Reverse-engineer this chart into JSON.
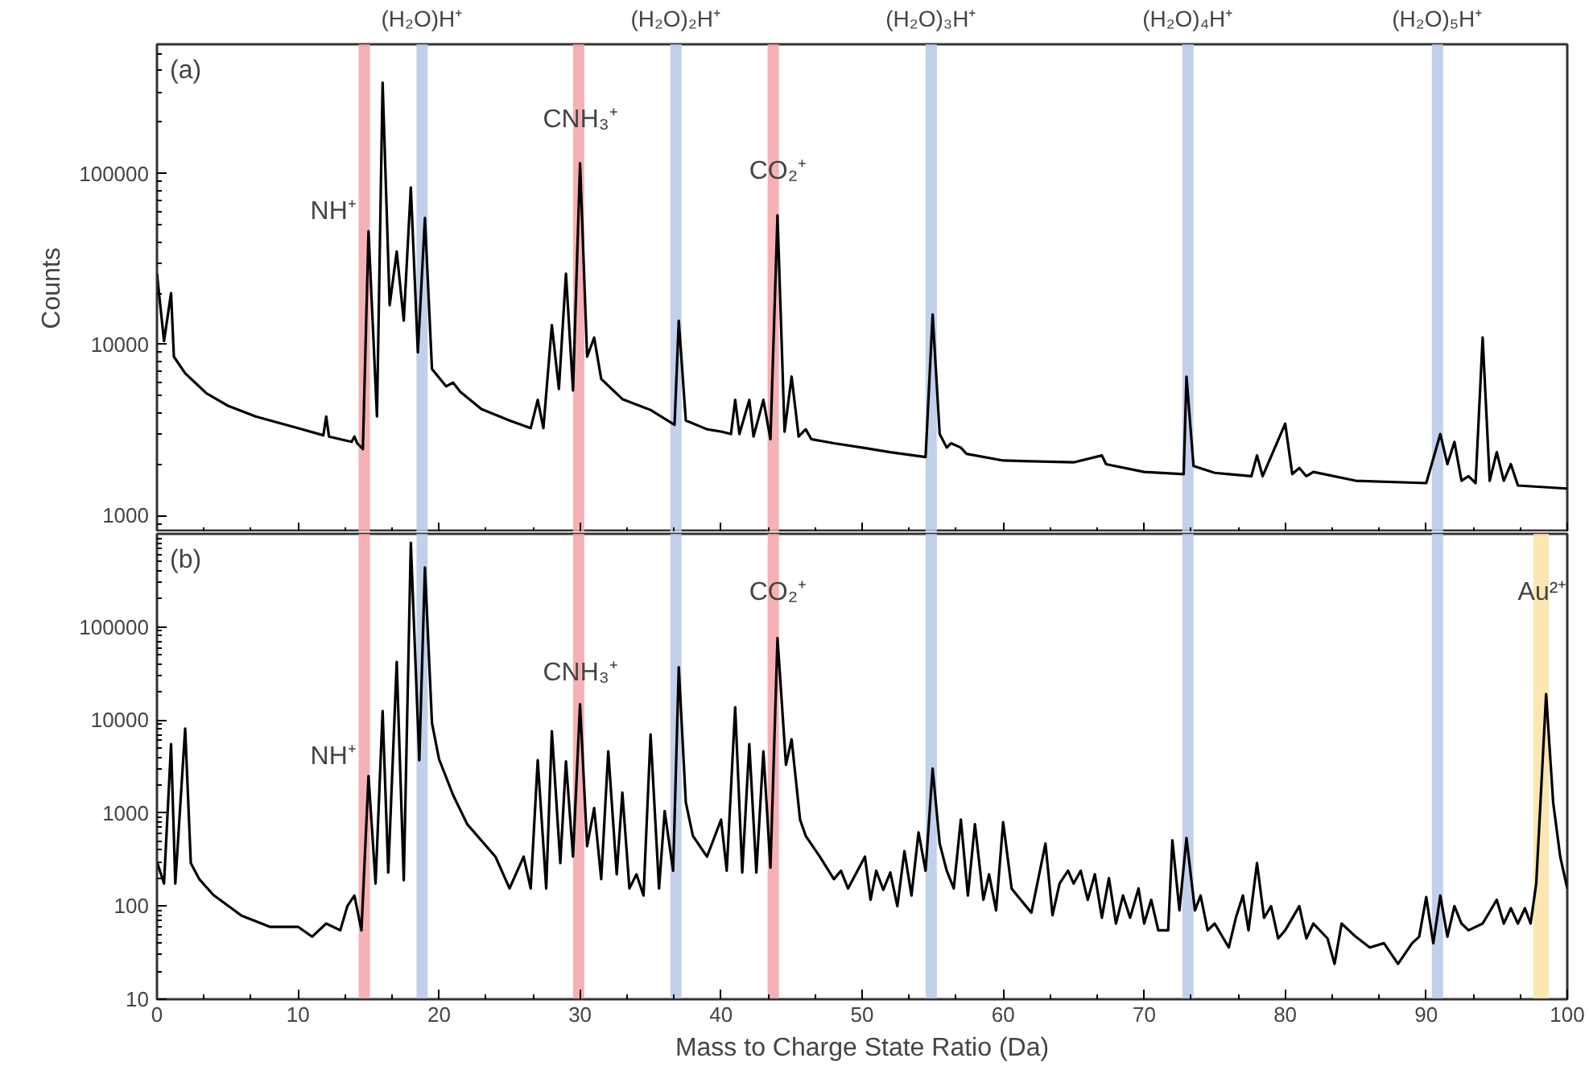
{
  "chart_data": [
    {
      "type": "line",
      "xlim": [
        0,
        100
      ],
      "xticks": [
        0,
        10,
        20,
        30,
        40,
        50,
        60,
        70,
        80,
        90,
        100
      ],
      "ylim": [
        800,
        570000
      ],
      "yticks": [
        1000,
        10000,
        100000
      ],
      "log": "y",
      "grid": false,
      "tick_labels": "y",
      "marker": "none",
      "line_style": "solid",
      "ylabel": "Counts",
      "x": [
        0,
        0.5,
        1,
        1.2,
        2,
        3.5,
        5,
        7,
        10,
        11.8,
        12,
        12.2,
        13.8,
        14,
        14.2,
        14.6,
        15,
        15.6,
        16,
        16.5,
        17,
        17.5,
        18,
        18.5,
        19,
        19.5,
        20.5,
        21,
        21.5,
        23,
        25,
        26.5,
        27,
        27.4,
        28,
        28.5,
        29,
        29.5,
        30,
        30.5,
        31,
        31.5,
        33,
        35,
        36.7,
        37,
        37.5,
        39,
        40,
        40.7,
        41,
        41.3,
        42,
        42.3,
        43,
        43.5,
        44,
        44.5,
        45,
        45.5,
        46,
        46.4,
        48,
        50,
        52,
        54.5,
        55,
        55.5,
        56,
        56.3,
        57,
        57.4,
        60,
        65,
        67,
        67.3,
        70,
        72.8,
        73,
        73.5,
        75,
        77.6,
        78,
        78.4,
        80,
        80.5,
        81,
        81.5,
        82,
        85,
        90,
        91,
        91.5,
        92,
        92.5,
        93,
        93.5,
        94,
        94.5,
        95,
        95.5,
        96,
        96.5,
        100
      ],
      "series": [
        {
          "color": "#000000",
          "values": [
            26000,
            10500,
            20000,
            8500,
            6800,
            5200,
            4400,
            3800,
            3250,
            2950,
            3800,
            2900,
            2700,
            2900,
            2650,
            2450,
            46000,
            3800,
            340000,
            17000,
            35000,
            13800,
            83000,
            9000,
            55000,
            7200,
            5700,
            6000,
            5300,
            4200,
            3600,
            3250,
            4750,
            3250,
            13000,
            5500,
            26000,
            5400,
            115000,
            8500,
            11000,
            6300,
            4800,
            4150,
            3400,
            13800,
            3600,
            3200,
            3100,
            3000,
            4750,
            3000,
            4750,
            2900,
            4750,
            2800,
            57000,
            3100,
            6500,
            2900,
            3200,
            2800,
            2650,
            2500,
            2350,
            2200,
            15000,
            3000,
            2500,
            2650,
            2500,
            2300,
            2100,
            2050,
            2250,
            2000,
            1800,
            1750,
            6500,
            1950,
            1780,
            1700,
            2250,
            1700,
            3450,
            1750,
            1900,
            1700,
            1800,
            1600,
            1550,
            3000,
            2000,
            2700,
            1600,
            1700,
            1550,
            11000,
            1600,
            2350,
            1600,
            2000,
            1500,
            1440
          ]
        }
      ],
      "bands": [
        {
          "axis": "x",
          "from": 14.3,
          "to": 15.1,
          "color": "#f4a3a8"
        },
        {
          "axis": "x",
          "from": 18.4,
          "to": 19.2,
          "color": "#b7c9e8",
          "label": "(H₂O)H⁺"
        },
        {
          "axis": "x",
          "from": 29.5,
          "to": 30.3,
          "color": "#f4a3a8"
        },
        {
          "axis": "x",
          "from": 36.4,
          "to": 37.2,
          "color": "#b7c9e8",
          "label": "(H₂O)₂H⁺"
        },
        {
          "axis": "x",
          "from": 43.3,
          "to": 44.1,
          "color": "#f4a3a8"
        },
        {
          "axis": "x",
          "from": 54.5,
          "to": 55.3,
          "color": "#b7c9e8",
          "label": "(H₂O)₃H⁺"
        },
        {
          "axis": "x",
          "from": 72.7,
          "to": 73.5,
          "color": "#b7c9e8",
          "label": "(H₂O)₄H⁺"
        },
        {
          "axis": "x",
          "from": 90.4,
          "to": 91.2,
          "color": "#b7c9e8",
          "label": "(H₂O)₅H⁺"
        }
      ],
      "annotations": [
        "(a)",
        {
          "text": "NH⁺",
          "x": 15,
          "y": 46000
        },
        {
          "text": "CNH₃⁺",
          "x": 30,
          "y": 150000
        },
        {
          "text": "CO₂⁺",
          "x": 44,
          "y": 75000
        }
      ]
    },
    {
      "type": "line",
      "xlim": [
        0,
        100
      ],
      "xticks": [
        0,
        10,
        20,
        30,
        40,
        50,
        60,
        70,
        80,
        90,
        100
      ],
      "ylim": [
        10,
        1000000
      ],
      "yticks": [
        10,
        100,
        1000,
        10000,
        100000
      ],
      "log": "y",
      "grid": false,
      "marker": "none",
      "line_style": "solid",
      "xlabel": "Mass to Charge State Ratio (Da)",
      "x": [
        0,
        0.5,
        1,
        1.3,
        2,
        2.4,
        3,
        4,
        6,
        8,
        10,
        11,
        12,
        13,
        13.5,
        14,
        14.5,
        15,
        15.5,
        16,
        16.4,
        17,
        17.5,
        18,
        18.6,
        19,
        19.5,
        20,
        21,
        22,
        24,
        25,
        26,
        26.5,
        27,
        27.6,
        28,
        28.6,
        29,
        29.5,
        30,
        30.5,
        31,
        31.5,
        32,
        32.6,
        33,
        33.5,
        34,
        34.5,
        35,
        35.6,
        36,
        36.6,
        37,
        37.5,
        38,
        39,
        40,
        40.4,
        41,
        41.5,
        42,
        42.5,
        43,
        43.5,
        44,
        44.6,
        45,
        45.6,
        46,
        47,
        48,
        48.5,
        49,
        50.2,
        50.6,
        51,
        51.5,
        52,
        52.5,
        53,
        53.5,
        54,
        54.5,
        55,
        55.5,
        56,
        56.5,
        57,
        57.5,
        58,
        58.6,
        59,
        59.5,
        60,
        60.6,
        61,
        62,
        63,
        63.5,
        64,
        64.6,
        65,
        65.5,
        66,
        66.5,
        67,
        67.5,
        68,
        68.5,
        69,
        69.6,
        70,
        70.5,
        71,
        71.7,
        72,
        72.5,
        73,
        73.6,
        74,
        74.5,
        75,
        76,
        76.5,
        77,
        77.4,
        78,
        78.5,
        79,
        79.5,
        80,
        81,
        81.5,
        82,
        83,
        83.5,
        84,
        85,
        86,
        87,
        88,
        89,
        89.5,
        90,
        90.5,
        91,
        91.5,
        92,
        92.5,
        93,
        94,
        95,
        95.5,
        96,
        96.5,
        97,
        97.4,
        97.8,
        98.5,
        99,
        99.5,
        100
      ],
      "series": [
        {
          "color": "#000000",
          "values": [
            300,
            175,
            5500,
            175,
            8100,
            290,
            195,
            132,
            79,
            60,
            60,
            47,
            65,
            55,
            100,
            130,
            55,
            2500,
            175,
            12500,
            230,
            42000,
            190,
            800000,
            3700,
            435000,
            9300,
            3800,
            1560,
            760,
            340,
            155,
            340,
            155,
            3700,
            155,
            7600,
            290,
            3600,
            340,
            14800,
            440,
            1130,
            195,
            4600,
            220,
            1660,
            155,
            220,
            130,
            7000,
            155,
            1050,
            240,
            37000,
            1300,
            570,
            340,
            850,
            240,
            13700,
            230,
            5500,
            230,
            4600,
            260,
            76000,
            3300,
            6200,
            850,
            570,
            340,
            195,
            240,
            155,
            340,
            117,
            240,
            150,
            230,
            100,
            390,
            130,
            620,
            240,
            3000,
            470,
            240,
            155,
            850,
            130,
            760,
            117,
            220,
            90,
            800,
            155,
            130,
            85,
            470,
            80,
            175,
            240,
            175,
            240,
            117,
            220,
            75,
            200,
            65,
            130,
            75,
            155,
            65,
            117,
            55,
            55,
            510,
            90,
            540,
            90,
            130,
            55,
            65,
            36,
            75,
            130,
            55,
            290,
            75,
            100,
            45,
            55,
            100,
            45,
            65,
            45,
            24,
            65,
            47,
            36,
            40,
            24,
            40,
            47,
            125,
            40,
            130,
            47,
            100,
            65,
            55,
            65,
            117,
            65,
            95,
            65,
            95,
            65,
            175,
            19000,
            1300,
            340,
            155
          ]
        }
      ],
      "bands": [
        {
          "axis": "x",
          "from": 14.3,
          "to": 15.1,
          "color": "#f4a3a8"
        },
        {
          "axis": "x",
          "from": 18.4,
          "to": 19.2,
          "color": "#b7c9e8"
        },
        {
          "axis": "x",
          "from": 29.5,
          "to": 30.3,
          "color": "#f4a3a8"
        },
        {
          "axis": "x",
          "from": 36.4,
          "to": 37.2,
          "color": "#b7c9e8"
        },
        {
          "axis": "x",
          "from": 43.3,
          "to": 44.1,
          "color": "#f4a3a8"
        },
        {
          "axis": "x",
          "from": 54.5,
          "to": 55.3,
          "color": "#b7c9e8"
        },
        {
          "axis": "x",
          "from": 72.7,
          "to": 73.5,
          "color": "#b7c9e8"
        },
        {
          "axis": "x",
          "from": 90.4,
          "to": 91.2,
          "color": "#b7c9e8"
        },
        {
          "axis": "x",
          "from": 97.6,
          "to": 98.7,
          "color": "#fbe3a6"
        }
      ],
      "annotations": [
        "(b)",
        {
          "text": "NH⁺",
          "x": 15,
          "y": 2500
        },
        {
          "text": "CNH₃⁺",
          "x": 30,
          "y": 18000
        },
        {
          "text": "CO₂⁺",
          "x": 44,
          "y": 130000
        },
        {
          "text": "Au²⁺",
          "x": 98.2,
          "y": 130000
        }
      ]
    }
  ]
}
